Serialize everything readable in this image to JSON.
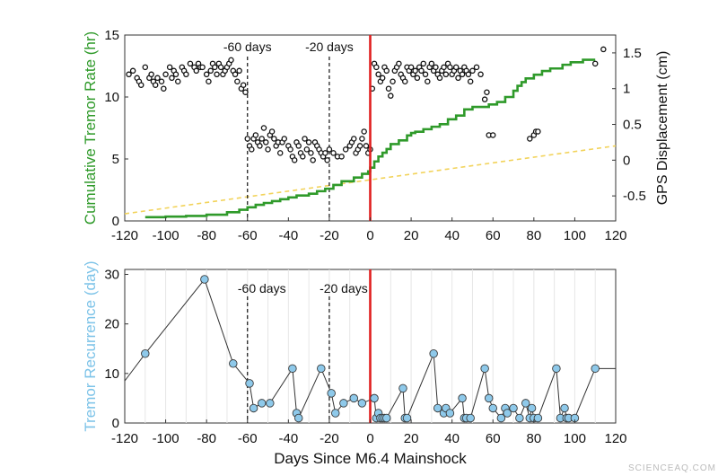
{
  "watermark": "SCIENCEAQ.COM",
  "colors": {
    "cumulative": "#2f9a2a",
    "trend": "#f2d35a",
    "mainshock": "#e02020",
    "gps": "#111111",
    "recurrence_fill": "#8ec9ea",
    "recurrence_line": "#333333"
  },
  "chart_data": [
    {
      "type": "line",
      "ylabel_left": "Cumulative Tremor Rate (hr)",
      "ylabel_right": "GPS Displacement (cm)",
      "xlim": [
        -120,
        120
      ],
      "ylim_left": [
        0,
        15
      ],
      "ylim_right": [
        -0.85,
        1.75
      ],
      "xticks": [
        -120,
        -100,
        -80,
        -60,
        -40,
        -20,
        0,
        20,
        40,
        60,
        80,
        100,
        120
      ],
      "yticks_left": [
        0,
        5,
        10,
        15
      ],
      "yticks_right": [
        -0.5,
        0,
        0.5,
        1,
        1.5
      ],
      "annotations": [
        {
          "x": -60,
          "label": "-60 days"
        },
        {
          "x": -20,
          "label": "-20 days"
        }
      ],
      "mainshock_x": 0,
      "cumulative_series": {
        "x": [
          -110,
          -100,
          -90,
          -80,
          -70,
          -64,
          -60,
          -56,
          -52,
          -48,
          -44,
          -40,
          -36,
          -30,
          -26,
          -22,
          -18,
          -14,
          -8,
          -4,
          -1,
          0,
          2,
          4,
          6,
          8,
          10,
          14,
          18,
          20,
          22,
          26,
          30,
          34,
          38,
          42,
          46,
          50,
          58,
          62,
          66,
          70,
          72,
          74,
          76,
          80,
          84,
          88,
          94,
          98,
          104,
          110
        ],
        "y": [
          0.3,
          0.35,
          0.4,
          0.5,
          0.7,
          0.9,
          1.1,
          1.3,
          1.45,
          1.6,
          1.75,
          1.9,
          2.05,
          2.2,
          2.4,
          2.6,
          2.9,
          3.2,
          3.5,
          3.8,
          4.0,
          4.3,
          4.8,
          5.2,
          5.5,
          5.8,
          6.2,
          6.5,
          6.9,
          7.1,
          7.2,
          7.4,
          7.6,
          7.8,
          8.2,
          8.5,
          9.0,
          9.2,
          9.4,
          9.6,
          10.0,
          10.5,
          10.9,
          11.2,
          11.5,
          11.8,
          12.1,
          12.3,
          12.6,
          12.8,
          13.0,
          13.0
        ]
      },
      "trend_series": {
        "x": [
          -120,
          120
        ],
        "y": [
          -0.75,
          0.2
        ]
      },
      "gps_series": {
        "x": [
          -118,
          -116,
          -114,
          -113,
          -112,
          -110,
          -108,
          -107,
          -106,
          -105,
          -104,
          -102,
          -101,
          -100,
          -98,
          -97,
          -96,
          -95,
          -94,
          -92,
          -91,
          -90,
          -88,
          -86,
          -85,
          -84,
          -83,
          -82,
          -80,
          -79,
          -78,
          -77,
          -76,
          -75,
          -74,
          -73,
          -72,
          -71,
          -70,
          -69,
          -68,
          -67,
          -66,
          -65,
          -64,
          -63,
          -62,
          -61,
          -60,
          -59,
          -58,
          -57,
          -56,
          -55,
          -54,
          -53,
          -52,
          -51,
          -50,
          -49,
          -48,
          -47,
          -46,
          -45,
          -44,
          -43,
          -42,
          -40,
          -39,
          -38,
          -37,
          -36,
          -35,
          -34,
          -33,
          -32,
          -31,
          -30,
          -29,
          -28,
          -27,
          -26,
          -25,
          -24,
          -23,
          -22,
          -21,
          -20,
          -18,
          -16,
          -14,
          -12,
          -10,
          -9,
          -8,
          -7,
          -6,
          -5,
          -4,
          -3,
          -2,
          -1,
          0,
          1,
          2,
          3,
          4,
          5,
          6,
          7,
          8,
          9,
          10,
          11,
          12,
          13,
          14,
          15,
          16,
          17,
          18,
          19,
          20,
          21,
          22,
          23,
          24,
          25,
          26,
          27,
          28,
          29,
          30,
          31,
          32,
          33,
          34,
          35,
          36,
          37,
          38,
          39,
          40,
          41,
          42,
          43,
          44,
          45,
          46,
          47,
          48,
          49,
          50,
          52,
          54,
          56,
          57,
          58,
          60,
          78,
          80,
          81,
          82,
          110,
          114
        ],
        "y": [
          1.2,
          1.25,
          1.15,
          1.1,
          1.05,
          1.3,
          1.15,
          1.2,
          1.1,
          1.05,
          1.15,
          1.1,
          1.0,
          1.2,
          1.3,
          1.15,
          1.25,
          1.2,
          1.1,
          1.3,
          1.25,
          1.2,
          1.35,
          1.3,
          1.25,
          1.35,
          1.3,
          1.3,
          1.2,
          1.1,
          1.25,
          1.35,
          1.3,
          1.2,
          1.35,
          1.3,
          1.2,
          1.25,
          1.3,
          1.35,
          1.4,
          1.25,
          1.2,
          1.1,
          1.25,
          1.0,
          1.05,
          0.95,
          0.3,
          0.2,
          0.15,
          0.3,
          0.35,
          0.25,
          0.2,
          0.3,
          0.45,
          0.25,
          0.15,
          0.35,
          0.4,
          0.3,
          0.2,
          0.25,
          0.1,
          0.25,
          0.3,
          0.2,
          0.15,
          0.05,
          0.0,
          0.25,
          0.2,
          0.1,
          0.05,
          0.3,
          0.15,
          0.25,
          0.1,
          0.0,
          0.25,
          0.2,
          0.15,
          0.1,
          0.05,
          0.1,
          0.0,
          0.15,
          0.1,
          0.05,
          0.05,
          0.15,
          0.2,
          0.25,
          0.3,
          0.1,
          0.15,
          0.2,
          0.3,
          0.4,
          0.2,
          0.1,
          0.15,
          1.0,
          1.35,
          1.3,
          1.2,
          1.1,
          1.15,
          1.3,
          1.25,
          1.0,
          0.9,
          1.1,
          1.25,
          1.3,
          1.35,
          1.2,
          1.15,
          1.1,
          1.3,
          1.25,
          1.3,
          1.2,
          1.25,
          1.15,
          1.3,
          1.25,
          1.35,
          1.2,
          1.1,
          1.3,
          1.35,
          1.25,
          1.3,
          1.2,
          1.15,
          1.25,
          1.3,
          1.2,
          1.35,
          1.3,
          1.2,
          1.25,
          1.3,
          1.15,
          1.25,
          1.2,
          1.3,
          1.25,
          1.2,
          1.1,
          1.25,
          1.3,
          1.2,
          0.85,
          0.95,
          0.35,
          0.35,
          0.3,
          0.35,
          0.4,
          0.4,
          1.35,
          1.55
        ]
      }
    },
    {
      "type": "line",
      "xlabel": "Days Since M6.4 Mainshock",
      "ylabel": "Tremor Recurrence (day)",
      "xlim": [
        -120,
        120
      ],
      "ylim": [
        0,
        31
      ],
      "xticks": [
        -120,
        -100,
        -80,
        -60,
        -40,
        -20,
        0,
        20,
        40,
        60,
        80,
        100,
        120
      ],
      "yticks": [
        0,
        10,
        20,
        30
      ],
      "annotations": [
        {
          "x": -60,
          "label": "-60 days"
        },
        {
          "x": -20,
          "label": "-20 days"
        }
      ],
      "mainshock_x": 0,
      "recurrence_series": {
        "x": [
          -120,
          -110,
          -81,
          -67,
          -59,
          -57,
          -53,
          -49,
          -38,
          -36,
          -35,
          -24,
          -19,
          -17,
          -13,
          -8,
          -4,
          2,
          3,
          4,
          5,
          6,
          7,
          8,
          16,
          17,
          18,
          31,
          33,
          36,
          37,
          39,
          45,
          46,
          47,
          49,
          56,
          58,
          60,
          64,
          66,
          67,
          70,
          73,
          76,
          78,
          79,
          80,
          82,
          91,
          93,
          95,
          96,
          97,
          100,
          110,
          120
        ],
        "y": [
          8.5,
          14,
          29,
          12,
          8,
          3,
          4,
          4,
          11,
          2,
          1,
          11,
          6,
          2,
          4,
          5,
          4,
          5,
          1,
          2,
          1,
          1,
          1,
          1,
          7,
          1,
          1,
          14,
          3,
          2,
          3,
          2,
          5,
          1,
          1,
          1,
          11,
          5,
          3,
          1,
          3,
          2,
          3,
          1,
          4,
          1,
          3,
          1,
          1,
          11,
          1,
          3,
          1,
          1,
          1,
          11,
          11
        ],
        "marker_from_index": 1,
        "marker_to_index": 55
      }
    }
  ]
}
